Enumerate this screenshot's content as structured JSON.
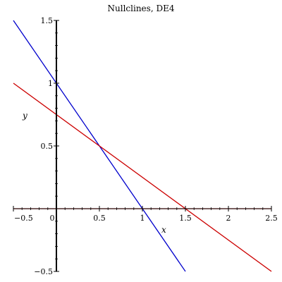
{
  "chart_data": {
    "type": "line",
    "title": "Nullclines, DE4",
    "xlabel": "x",
    "ylabel": "y",
    "xlim": [
      -0.5,
      2.5
    ],
    "ylim": [
      -0.5,
      1.5
    ],
    "grid": false,
    "x_ticks": [
      {
        "value": -0.5,
        "label": "−0.5"
      },
      {
        "value": 0,
        "label": "0"
      },
      {
        "value": 0.5,
        "label": "0.5"
      },
      {
        "value": 1,
        "label": "1"
      },
      {
        "value": 1.5,
        "label": "1.5"
      },
      {
        "value": 2,
        "label": "2"
      },
      {
        "value": 2.5,
        "label": "2.5"
      }
    ],
    "y_ticks": [
      {
        "value": -0.5,
        "label": "−0.5"
      },
      {
        "value": 0.5,
        "label": "0.5"
      },
      {
        "value": 1,
        "label": "1"
      },
      {
        "value": 1.5,
        "label": "1.5"
      }
    ],
    "series": [
      {
        "color": "#0000cc",
        "x": [
          -0.5,
          1.5
        ],
        "y": [
          1.5,
          -0.5
        ]
      },
      {
        "color": "#cc0000",
        "x": [
          -0.5,
          2.5
        ],
        "y": [
          1.0,
          -0.5
        ]
      },
      {
        "color": "#cc0000",
        "x": [
          -0.5,
          2.5
        ],
        "y": [
          0,
          0
        ]
      }
    ]
  }
}
